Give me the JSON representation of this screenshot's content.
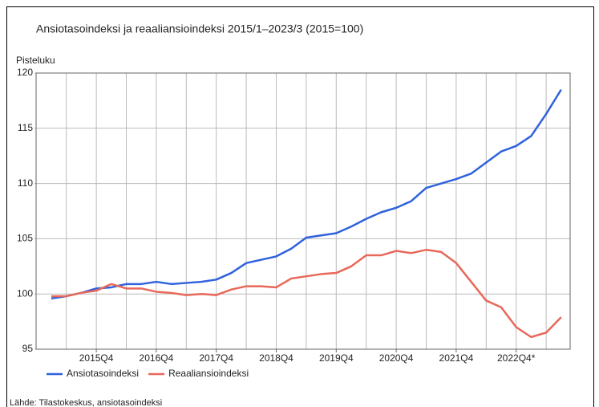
{
  "chart_data": {
    "type": "line",
    "title": "Ansiotasoindeksi ja reaaliansioindeksi 2015/1–2023/3 (2015=100)",
    "y_label": "Pisteluku",
    "source": "Lähde: Tilastokeskus, ansiotasoindeksi",
    "categories": [
      null,
      null,
      null,
      "2015Q4",
      null,
      null,
      null,
      "2016Q4",
      null,
      null,
      null,
      "2017Q4",
      null,
      null,
      null,
      "2018Q4",
      null,
      null,
      null,
      "2019Q4",
      null,
      null,
      null,
      "2020Q4",
      null,
      null,
      null,
      "2021Q4",
      null,
      null,
      null,
      "2022Q4*",
      null,
      null,
      null
    ],
    "series": [
      {
        "name": "Ansiotasoindeksi",
        "color": "#2f62dc",
        "values": [
          99.6,
          99.8,
          100.1,
          100.5,
          100.6,
          100.9,
          100.9,
          101.1,
          100.9,
          101.0,
          101.1,
          101.3,
          101.9,
          102.8,
          103.1,
          103.4,
          104.1,
          105.1,
          105.3,
          105.5,
          106.1,
          106.8,
          107.4,
          107.8,
          108.4,
          109.6,
          110.0,
          110.4,
          110.9,
          111.9,
          112.9,
          113.4,
          114.3,
          116.3,
          118.5
        ]
      },
      {
        "name": "Reaaliansioindeksi",
        "color": "#e8685a",
        "values": [
          99.8,
          99.8,
          100.1,
          100.3,
          100.9,
          100.5,
          100.5,
          100.2,
          100.1,
          99.9,
          100.0,
          99.9,
          100.4,
          100.7,
          100.7,
          100.6,
          101.4,
          101.6,
          101.8,
          101.9,
          102.5,
          103.5,
          103.5,
          103.9,
          103.7,
          104.0,
          103.8,
          102.8,
          101.1,
          99.4,
          98.8,
          97.0,
          96.1,
          96.5,
          97.9
        ]
      }
    ],
    "ylim": [
      95,
      120
    ],
    "yticks": [
      95,
      100,
      105,
      110,
      115,
      120
    ],
    "grid": true,
    "legend": "bottom"
  }
}
